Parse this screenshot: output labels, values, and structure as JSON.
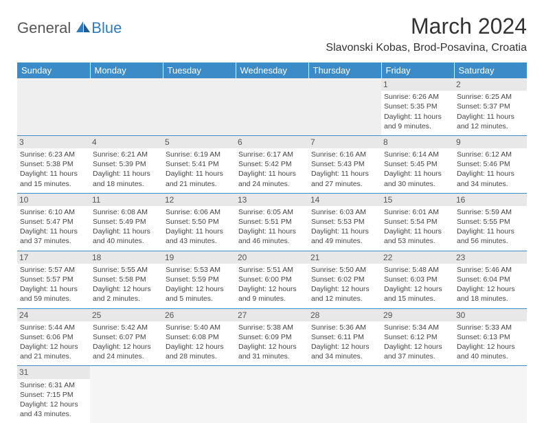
{
  "logo": {
    "part1": "General",
    "part2": "Blue"
  },
  "title": "March 2024",
  "location": "Slavonski Kobas, Brod-Posavina, Croatia",
  "colors": {
    "header_bg": "#3b8bc8",
    "header_text": "#ffffff",
    "border": "#3b8bc8",
    "daynum_bg": "#e8e8e8",
    "text": "#444444"
  },
  "weekdays": [
    "Sunday",
    "Monday",
    "Tuesday",
    "Wednesday",
    "Thursday",
    "Friday",
    "Saturday"
  ],
  "weeks": [
    [
      null,
      null,
      null,
      null,
      null,
      {
        "n": "1",
        "sr": "Sunrise: 6:26 AM",
        "ss": "Sunset: 5:35 PM",
        "dl1": "Daylight: 11 hours",
        "dl2": "and 9 minutes."
      },
      {
        "n": "2",
        "sr": "Sunrise: 6:25 AM",
        "ss": "Sunset: 5:37 PM",
        "dl1": "Daylight: 11 hours",
        "dl2": "and 12 minutes."
      }
    ],
    [
      {
        "n": "3",
        "sr": "Sunrise: 6:23 AM",
        "ss": "Sunset: 5:38 PM",
        "dl1": "Daylight: 11 hours",
        "dl2": "and 15 minutes."
      },
      {
        "n": "4",
        "sr": "Sunrise: 6:21 AM",
        "ss": "Sunset: 5:39 PM",
        "dl1": "Daylight: 11 hours",
        "dl2": "and 18 minutes."
      },
      {
        "n": "5",
        "sr": "Sunrise: 6:19 AM",
        "ss": "Sunset: 5:41 PM",
        "dl1": "Daylight: 11 hours",
        "dl2": "and 21 minutes."
      },
      {
        "n": "6",
        "sr": "Sunrise: 6:17 AM",
        "ss": "Sunset: 5:42 PM",
        "dl1": "Daylight: 11 hours",
        "dl2": "and 24 minutes."
      },
      {
        "n": "7",
        "sr": "Sunrise: 6:16 AM",
        "ss": "Sunset: 5:43 PM",
        "dl1": "Daylight: 11 hours",
        "dl2": "and 27 minutes."
      },
      {
        "n": "8",
        "sr": "Sunrise: 6:14 AM",
        "ss": "Sunset: 5:45 PM",
        "dl1": "Daylight: 11 hours",
        "dl2": "and 30 minutes."
      },
      {
        "n": "9",
        "sr": "Sunrise: 6:12 AM",
        "ss": "Sunset: 5:46 PM",
        "dl1": "Daylight: 11 hours",
        "dl2": "and 34 minutes."
      }
    ],
    [
      {
        "n": "10",
        "sr": "Sunrise: 6:10 AM",
        "ss": "Sunset: 5:47 PM",
        "dl1": "Daylight: 11 hours",
        "dl2": "and 37 minutes."
      },
      {
        "n": "11",
        "sr": "Sunrise: 6:08 AM",
        "ss": "Sunset: 5:49 PM",
        "dl1": "Daylight: 11 hours",
        "dl2": "and 40 minutes."
      },
      {
        "n": "12",
        "sr": "Sunrise: 6:06 AM",
        "ss": "Sunset: 5:50 PM",
        "dl1": "Daylight: 11 hours",
        "dl2": "and 43 minutes."
      },
      {
        "n": "13",
        "sr": "Sunrise: 6:05 AM",
        "ss": "Sunset: 5:51 PM",
        "dl1": "Daylight: 11 hours",
        "dl2": "and 46 minutes."
      },
      {
        "n": "14",
        "sr": "Sunrise: 6:03 AM",
        "ss": "Sunset: 5:53 PM",
        "dl1": "Daylight: 11 hours",
        "dl2": "and 49 minutes."
      },
      {
        "n": "15",
        "sr": "Sunrise: 6:01 AM",
        "ss": "Sunset: 5:54 PM",
        "dl1": "Daylight: 11 hours",
        "dl2": "and 53 minutes."
      },
      {
        "n": "16",
        "sr": "Sunrise: 5:59 AM",
        "ss": "Sunset: 5:55 PM",
        "dl1": "Daylight: 11 hours",
        "dl2": "and 56 minutes."
      }
    ],
    [
      {
        "n": "17",
        "sr": "Sunrise: 5:57 AM",
        "ss": "Sunset: 5:57 PM",
        "dl1": "Daylight: 11 hours",
        "dl2": "and 59 minutes."
      },
      {
        "n": "18",
        "sr": "Sunrise: 5:55 AM",
        "ss": "Sunset: 5:58 PM",
        "dl1": "Daylight: 12 hours",
        "dl2": "and 2 minutes."
      },
      {
        "n": "19",
        "sr": "Sunrise: 5:53 AM",
        "ss": "Sunset: 5:59 PM",
        "dl1": "Daylight: 12 hours",
        "dl2": "and 5 minutes."
      },
      {
        "n": "20",
        "sr": "Sunrise: 5:51 AM",
        "ss": "Sunset: 6:00 PM",
        "dl1": "Daylight: 12 hours",
        "dl2": "and 9 minutes."
      },
      {
        "n": "21",
        "sr": "Sunrise: 5:50 AM",
        "ss": "Sunset: 6:02 PM",
        "dl1": "Daylight: 12 hours",
        "dl2": "and 12 minutes."
      },
      {
        "n": "22",
        "sr": "Sunrise: 5:48 AM",
        "ss": "Sunset: 6:03 PM",
        "dl1": "Daylight: 12 hours",
        "dl2": "and 15 minutes."
      },
      {
        "n": "23",
        "sr": "Sunrise: 5:46 AM",
        "ss": "Sunset: 6:04 PM",
        "dl1": "Daylight: 12 hours",
        "dl2": "and 18 minutes."
      }
    ],
    [
      {
        "n": "24",
        "sr": "Sunrise: 5:44 AM",
        "ss": "Sunset: 6:06 PM",
        "dl1": "Daylight: 12 hours",
        "dl2": "and 21 minutes."
      },
      {
        "n": "25",
        "sr": "Sunrise: 5:42 AM",
        "ss": "Sunset: 6:07 PM",
        "dl1": "Daylight: 12 hours",
        "dl2": "and 24 minutes."
      },
      {
        "n": "26",
        "sr": "Sunrise: 5:40 AM",
        "ss": "Sunset: 6:08 PM",
        "dl1": "Daylight: 12 hours",
        "dl2": "and 28 minutes."
      },
      {
        "n": "27",
        "sr": "Sunrise: 5:38 AM",
        "ss": "Sunset: 6:09 PM",
        "dl1": "Daylight: 12 hours",
        "dl2": "and 31 minutes."
      },
      {
        "n": "28",
        "sr": "Sunrise: 5:36 AM",
        "ss": "Sunset: 6:11 PM",
        "dl1": "Daylight: 12 hours",
        "dl2": "and 34 minutes."
      },
      {
        "n": "29",
        "sr": "Sunrise: 5:34 AM",
        "ss": "Sunset: 6:12 PM",
        "dl1": "Daylight: 12 hours",
        "dl2": "and 37 minutes."
      },
      {
        "n": "30",
        "sr": "Sunrise: 5:33 AM",
        "ss": "Sunset: 6:13 PM",
        "dl1": "Daylight: 12 hours",
        "dl2": "and 40 minutes."
      }
    ],
    [
      {
        "n": "31",
        "sr": "Sunrise: 6:31 AM",
        "ss": "Sunset: 7:15 PM",
        "dl1": "Daylight: 12 hours",
        "dl2": "and 43 minutes."
      },
      null,
      null,
      null,
      null,
      null,
      null
    ]
  ]
}
